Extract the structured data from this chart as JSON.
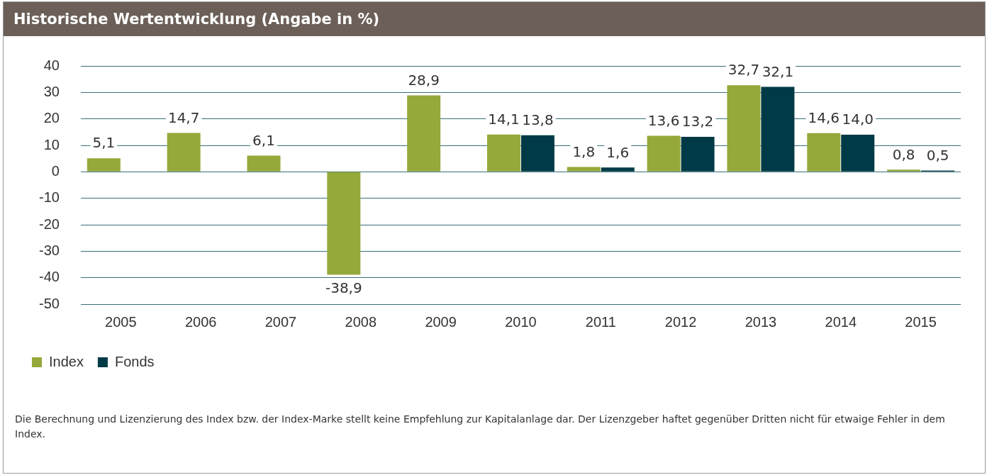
{
  "chart_data": {
    "type": "bar",
    "title": "Historische Wertentwicklung (Angabe in %)",
    "categories": [
      "2005",
      "2006",
      "2007",
      "2008",
      "2009",
      "2010",
      "2011",
      "2012",
      "2013",
      "2014",
      "2015"
    ],
    "series": [
      {
        "name": "Index",
        "color": "#95a83a",
        "values": [
          5.1,
          14.7,
          6.1,
          -38.9,
          28.9,
          14.1,
          1.8,
          13.6,
          32.7,
          14.6,
          0.8
        ],
        "value_labels": [
          "5,1",
          "14,7",
          "6,1",
          "-38,9",
          "28,9",
          "14,1",
          "1,8",
          "13,6",
          "32,7",
          "14,6",
          "0,8"
        ]
      },
      {
        "name": "Fonds",
        "color": "#003a46",
        "values": [
          null,
          null,
          null,
          null,
          null,
          13.8,
          1.6,
          13.2,
          32.1,
          14.0,
          0.5
        ],
        "value_labels": [
          null,
          null,
          null,
          null,
          null,
          "13,8",
          "1,6",
          "13,2",
          "32,1",
          "14,0",
          "0,5"
        ]
      }
    ],
    "ylim": [
      -50,
      40
    ],
    "yticks": [
      -50,
      -40,
      -30,
      -20,
      -10,
      0,
      10,
      20,
      30,
      40
    ],
    "grid": "y",
    "legend": "bottom left",
    "annotations": [
      "Die Berechnung und Lizenzierung des Index bzw. der Index-Marke stellt keine Empfehlung zur Kapitalanlage dar. Der Lizenzgeber haftet gegenüber Dritten nicht für etwaige Fehler in dem Index."
    ]
  }
}
